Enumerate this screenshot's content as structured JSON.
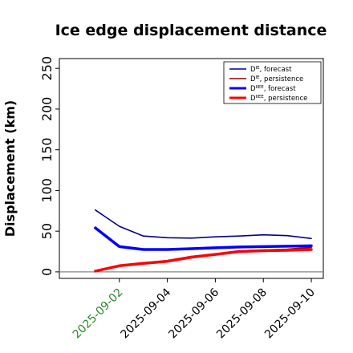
{
  "chart_data": {
    "type": "line",
    "title": "Ice edge displacement distance",
    "xlabel": "",
    "ylabel": "Displacement (km)",
    "x": [
      "2025-09-01",
      "2025-09-02",
      "2025-09-03",
      "2025-09-04",
      "2025-09-05",
      "2025-09-06",
      "2025-09-07",
      "2025-09-08",
      "2025-09-09",
      "2025-09-10"
    ],
    "xticks": [
      "2025-09-02",
      "2025-09-04",
      "2025-09-06",
      "2025-09-08",
      "2025-09-10"
    ],
    "xtick_colors": {
      "2025-09-02": "#2a8a2a"
    },
    "xlim": [
      "2025-08-30T12:00",
      "2025-09-10T12:00"
    ],
    "ylim": [
      -8,
      262
    ],
    "yticks": [
      0,
      50,
      100,
      150,
      200,
      250
    ],
    "grid": false,
    "legend_position": "top-right",
    "zero_line": true,
    "series": [
      {
        "name": "D^IE, forecast",
        "color": "#00008b",
        "width": 1.6,
        "values": [
          76,
          56,
          44,
          42,
          41.5,
          43,
          44,
          45.5,
          44.5,
          41
        ]
      },
      {
        "name": "D^IE, persistence",
        "color": "#8b0000",
        "width": 1.6,
        "values": [
          1,
          8,
          11,
          14,
          19,
          22,
          26,
          27,
          28,
          30
        ]
      },
      {
        "name": "D^IIEE, forecast",
        "color": "#0000ff",
        "width": 3.5,
        "values": [
          54,
          31,
          27.5,
          27.5,
          28.5,
          29.5,
          30.5,
          31,
          31.5,
          32
        ]
      },
      {
        "name": "D^IIEE, persistence",
        "color": "#ff0000",
        "width": 3.5,
        "values": [
          1,
          7.5,
          10.5,
          13,
          18,
          21.5,
          25,
          26,
          26.5,
          27.5
        ]
      }
    ],
    "legend": [
      {
        "base": "D",
        "sup": "IE",
        "rest": ", forecast"
      },
      {
        "base": "D",
        "sup": "IE",
        "rest": ", persistence"
      },
      {
        "base": "D",
        "sup": "IIEE",
        "rest": ", forecast"
      },
      {
        "base": "D",
        "sup": "IIEE",
        "rest": ", persistence"
      }
    ]
  }
}
